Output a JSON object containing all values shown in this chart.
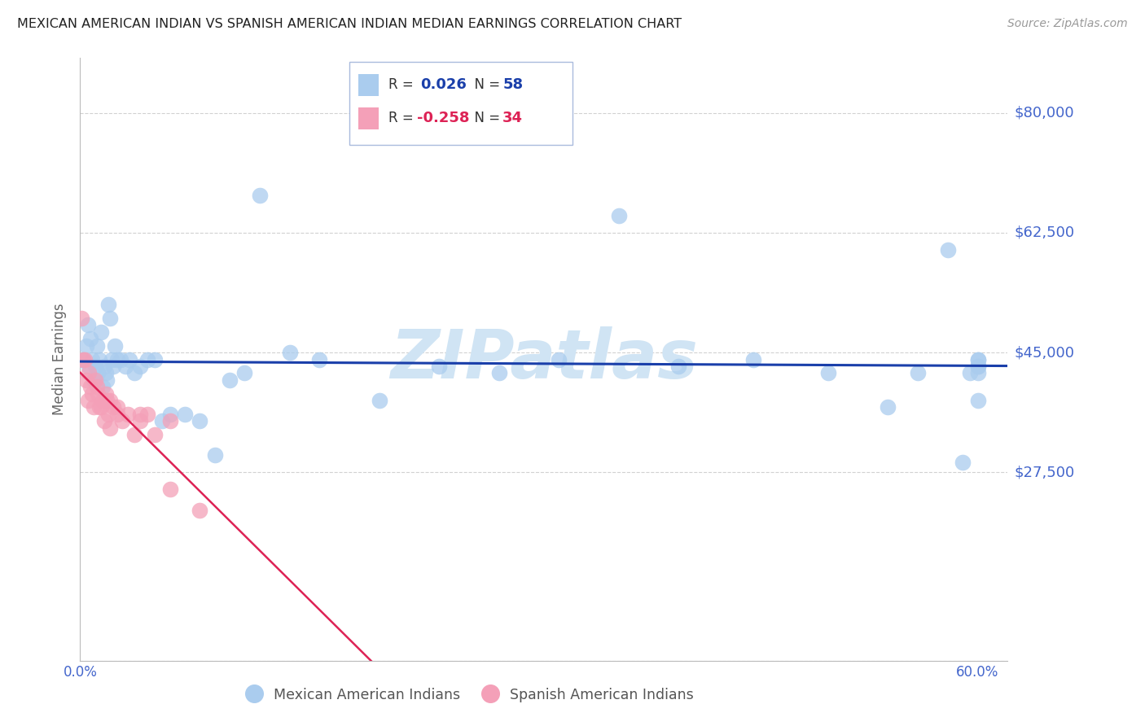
{
  "title": "MEXICAN AMERICAN INDIAN VS SPANISH AMERICAN INDIAN MEDIAN EARNINGS CORRELATION CHART",
  "source": "Source: ZipAtlas.com",
  "ylabel": "Median Earnings",
  "xlim": [
    0.0,
    0.62
  ],
  "ylim": [
    0,
    88000
  ],
  "yticks": [
    0,
    27500,
    45000,
    62500,
    80000
  ],
  "ytick_labels": [
    "",
    "$27,500",
    "$45,000",
    "$62,500",
    "$80,000"
  ],
  "blue_R": 0.026,
  "blue_N": 58,
  "pink_R": -0.258,
  "pink_N": 34,
  "blue_color": "#aaccee",
  "pink_color": "#f4a0b8",
  "blue_line_color": "#1a3faa",
  "pink_line_color": "#dd2255",
  "pink_dash_color": "#ddaabb",
  "grid_color": "#cccccc",
  "title_color": "#222222",
  "tick_color": "#4466cc",
  "ylabel_color": "#666666",
  "watermark_color": "#d0e4f4",
  "legend_border_color": "#aabbdd",
  "blue_x": [
    0.002,
    0.004,
    0.005,
    0.006,
    0.007,
    0.008,
    0.009,
    0.01,
    0.011,
    0.012,
    0.013,
    0.014,
    0.015,
    0.016,
    0.017,
    0.018,
    0.019,
    0.02,
    0.021,
    0.022,
    0.023,
    0.025,
    0.027,
    0.03,
    0.033,
    0.036,
    0.04,
    0.045,
    0.05,
    0.055,
    0.06,
    0.07,
    0.08,
    0.09,
    0.1,
    0.11,
    0.12,
    0.14,
    0.16,
    0.2,
    0.24,
    0.28,
    0.32,
    0.36,
    0.4,
    0.45,
    0.5,
    0.54,
    0.56,
    0.58,
    0.59,
    0.595,
    0.6,
    0.6,
    0.6,
    0.6,
    0.6,
    0.6
  ],
  "blue_y": [
    44000,
    46000,
    49000,
    43000,
    47000,
    44000,
    41000,
    43000,
    46000,
    42000,
    44000,
    48000,
    40000,
    43000,
    42000,
    41000,
    52000,
    50000,
    44000,
    43000,
    46000,
    44000,
    44000,
    43000,
    44000,
    42000,
    43000,
    44000,
    44000,
    35000,
    36000,
    36000,
    35000,
    30000,
    41000,
    42000,
    68000,
    45000,
    44000,
    38000,
    43000,
    42000,
    44000,
    65000,
    43000,
    44000,
    42000,
    37000,
    42000,
    60000,
    29000,
    42000,
    42000,
    43000,
    44000,
    43000,
    38000,
    44000
  ],
  "pink_x": [
    0.001,
    0.002,
    0.003,
    0.004,
    0.005,
    0.006,
    0.007,
    0.008,
    0.009,
    0.01,
    0.011,
    0.012,
    0.013,
    0.014,
    0.015,
    0.016,
    0.017,
    0.018,
    0.019,
    0.02,
    0.022,
    0.025,
    0.028,
    0.032,
    0.036,
    0.04,
    0.045,
    0.05,
    0.06,
    0.08,
    0.02,
    0.025,
    0.04,
    0.06
  ],
  "pink_y": [
    50000,
    44000,
    44000,
    41000,
    38000,
    42000,
    40000,
    39000,
    37000,
    41000,
    40000,
    39000,
    37000,
    37000,
    38000,
    35000,
    39000,
    38000,
    36000,
    34000,
    37000,
    36000,
    35000,
    36000,
    33000,
    35000,
    36000,
    33000,
    25000,
    22000,
    38000,
    37000,
    36000,
    35000
  ]
}
